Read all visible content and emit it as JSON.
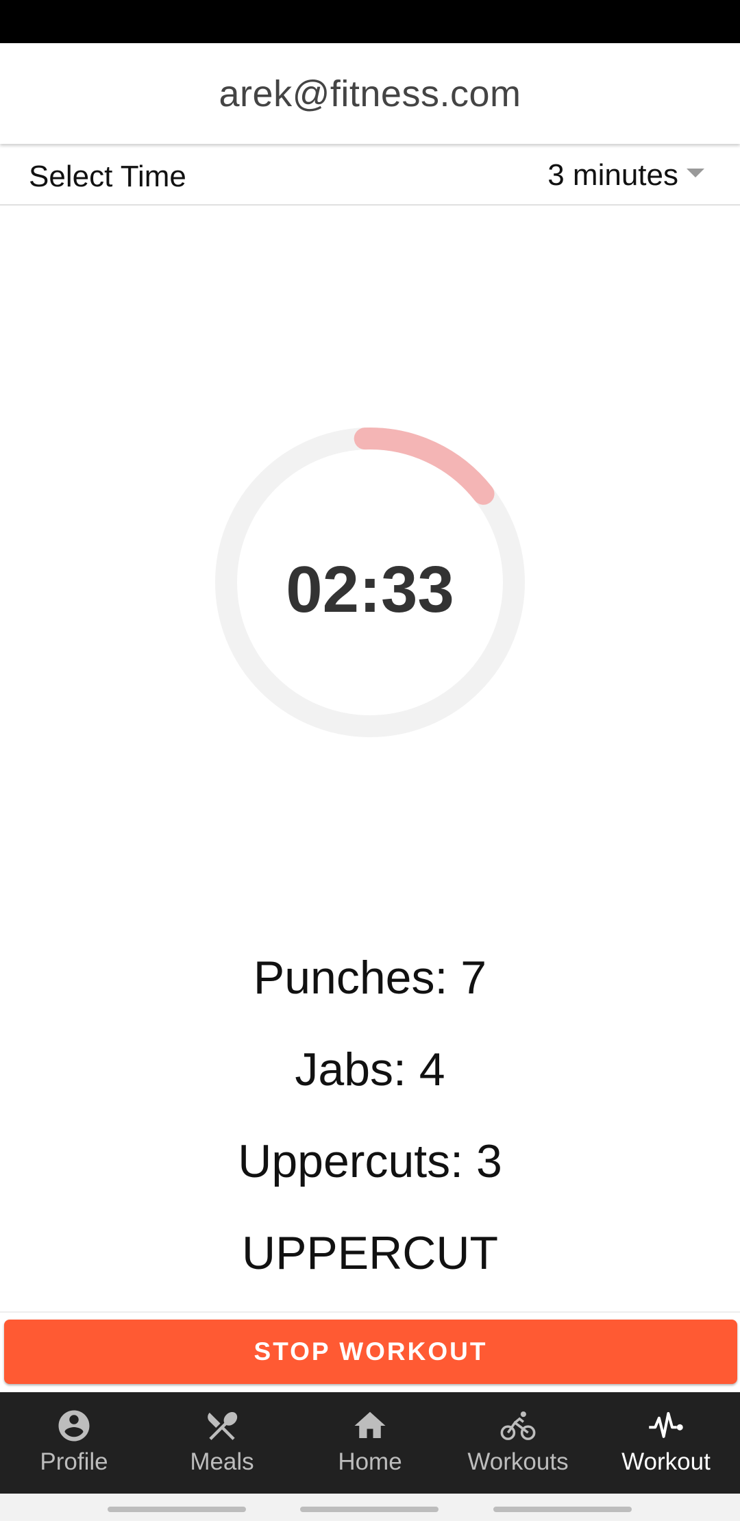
{
  "header": {
    "title": "arek@fitness.com"
  },
  "select_time": {
    "label": "Select Time",
    "value": "3 minutes"
  },
  "timer": {
    "display": "02:33",
    "progress": 0.15,
    "track_color": "#f2f2f2",
    "progress_color": "#f4b5b5"
  },
  "stats": {
    "punches": "Punches: 7",
    "jabs": "Jabs: 4",
    "uppercuts": "Uppercuts: 3",
    "current_move": "UPPERCUT"
  },
  "actions": {
    "stop_label": "STOP WORKOUT",
    "stop_color": "#ff5a33"
  },
  "nav": {
    "items": [
      {
        "label": "Profile",
        "icon": "account-circle-icon"
      },
      {
        "label": "Meals",
        "icon": "utensils-icon"
      },
      {
        "label": "Home",
        "icon": "home-icon"
      },
      {
        "label": "Workouts",
        "icon": "bike-icon"
      },
      {
        "label": "Workout",
        "icon": "heartbeat-icon",
        "active": true
      }
    ]
  }
}
